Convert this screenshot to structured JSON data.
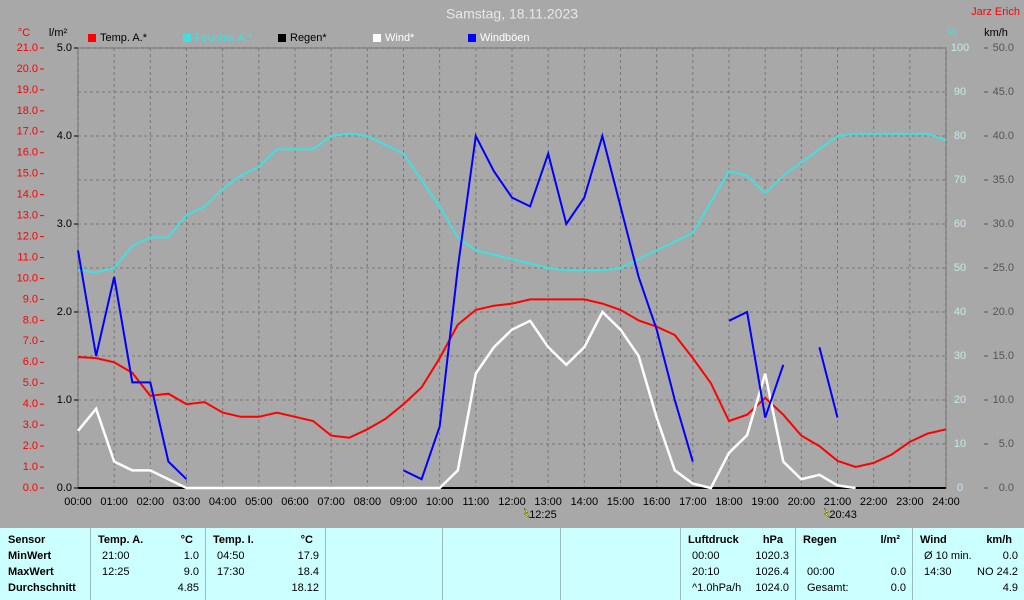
{
  "chart_data": {
    "type": "line",
    "title": "Samstag, 18.11.2023",
    "author": "Jarz Erich",
    "ylabel": "°C",
    "y2label": "l/m²",
    "y3label": "%",
    "y4label": "km/h",
    "x": [
      0,
      0.5,
      1,
      1.5,
      2,
      2.5,
      3,
      3.5,
      4,
      4.5,
      5,
      5.5,
      6,
      6.5,
      7,
      7.5,
      8,
      8.5,
      9,
      9.5,
      10,
      10.5,
      11,
      11.5,
      12,
      12.5,
      13,
      13.5,
      14,
      14.5,
      15,
      15.5,
      16,
      16.5,
      17,
      17.5,
      18,
      18.5,
      19,
      19.5,
      20,
      20.5,
      21,
      21.5,
      22,
      22.5,
      23,
      23.5,
      24
    ],
    "xlim": [
      0,
      24
    ],
    "xticks": [
      {
        "value": 0,
        "label": "00:00"
      },
      {
        "value": 1,
        "label": "01:00"
      },
      {
        "value": 2,
        "label": "02:00"
      },
      {
        "value": 3,
        "label": "03:00"
      },
      {
        "value": 4,
        "label": "04:00"
      },
      {
        "value": 5,
        "label": "05:00"
      },
      {
        "value": 6,
        "label": "06:00"
      },
      {
        "value": 7,
        "label": "07:00"
      },
      {
        "value": 8,
        "label": "08:00"
      },
      {
        "value": 9,
        "label": "09:00"
      },
      {
        "value": 10,
        "label": "10:00"
      },
      {
        "value": 11,
        "label": "11:00"
      },
      {
        "value": 12,
        "label": "12:00"
      },
      {
        "value": 13,
        "label": "13:00"
      },
      {
        "value": 14,
        "label": "14:00"
      },
      {
        "value": 15,
        "label": "15:00"
      },
      {
        "value": 16,
        "label": "16:00"
      },
      {
        "value": 17,
        "label": "17:00"
      },
      {
        "value": 18,
        "label": "18:00"
      },
      {
        "value": 19,
        "label": "19:00"
      },
      {
        "value": 20,
        "label": "20:00"
      },
      {
        "value": 21,
        "label": "21:00"
      },
      {
        "value": 22,
        "label": "22:00"
      },
      {
        "value": 23,
        "label": "23:00"
      },
      {
        "value": 24,
        "label": "24:00"
      }
    ],
    "ylim": [
      0,
      21
    ],
    "yticks": [
      {
        "value": 0,
        "label": "0.0"
      },
      {
        "value": 1,
        "label": "1.0"
      },
      {
        "value": 2,
        "label": "2.0"
      },
      {
        "value": 3,
        "label": "3.0"
      },
      {
        "value": 4,
        "label": "4.0"
      },
      {
        "value": 5,
        "label": "5.0"
      },
      {
        "value": 6,
        "label": "6.0"
      },
      {
        "value": 7,
        "label": "7.0"
      },
      {
        "value": 8,
        "label": "8.0"
      },
      {
        "value": 9,
        "label": "9.0"
      },
      {
        "value": 10,
        "label": "10.0"
      },
      {
        "value": 11,
        "label": "11.0"
      },
      {
        "value": 12,
        "label": "12.0"
      },
      {
        "value": 13,
        "label": "13.0"
      },
      {
        "value": 14,
        "label": "14.0"
      },
      {
        "value": 15,
        "label": "15.0"
      },
      {
        "value": 16,
        "label": "16.0"
      },
      {
        "value": 17,
        "label": "17.0"
      },
      {
        "value": 18,
        "label": "18.0"
      },
      {
        "value": 19,
        "label": "19.0"
      },
      {
        "value": 20,
        "label": "20.0"
      },
      {
        "value": 21,
        "label": "21.0"
      }
    ],
    "y2lim": [
      0,
      5
    ],
    "y2ticks": [
      {
        "value": 0,
        "label": "0.0"
      },
      {
        "value": 1,
        "label": "1.0"
      },
      {
        "value": 2,
        "label": "2.0"
      },
      {
        "value": 3,
        "label": "3.0"
      },
      {
        "value": 4,
        "label": "4.0"
      },
      {
        "value": 5,
        "label": "5.0"
      }
    ],
    "y3lim": [
      0,
      100
    ],
    "y3ticks": [
      0,
      10,
      20,
      30,
      40,
      50,
      60,
      70,
      80,
      90,
      100
    ],
    "y4lim": [
      0,
      50
    ],
    "y4ticks": [
      {
        "value": 0,
        "label": "0.0"
      },
      {
        "value": 5,
        "label": "5.0"
      },
      {
        "value": 10,
        "label": "10.0"
      },
      {
        "value": 15,
        "label": "15.0"
      },
      {
        "value": 20,
        "label": "20.0"
      },
      {
        "value": 25,
        "label": "25.0"
      },
      {
        "value": 30,
        "label": "30.0"
      },
      {
        "value": 35,
        "label": "35.0"
      },
      {
        "value": 40,
        "label": "40.0"
      },
      {
        "value": 45,
        "label": "45.0"
      },
      {
        "value": 50,
        "label": "50.0"
      }
    ],
    "grid": true,
    "series": [
      {
        "name": "Temp. A.*",
        "color": "#ff0000",
        "axis": "y",
        "values": [
          6.25,
          6.2,
          6.0,
          5.5,
          4.4,
          4.5,
          4.0,
          4.1,
          3.6,
          3.4,
          3.4,
          3.6,
          3.4,
          3.2,
          2.5,
          2.4,
          2.8,
          3.3,
          4.0,
          4.8,
          6.2,
          7.8,
          8.5,
          8.7,
          8.8,
          9.0,
          9.0,
          9.0,
          9.0,
          8.8,
          8.5,
          8.0,
          7.7,
          7.3,
          6.2,
          5.0,
          3.2,
          3.5,
          4.3,
          3.5,
          2.5,
          2.0,
          1.3,
          1.0,
          1.2,
          1.6,
          2.2,
          2.6,
          2.8
        ]
      },
      {
        "name": "Feuchte A.*",
        "color": "#40e0e0",
        "axis": "y3",
        "values": [
          49.5,
          49,
          50,
          55,
          57,
          57,
          62,
          64,
          68,
          71,
          73,
          77,
          77,
          77,
          80,
          80.5,
          80,
          78,
          76,
          70,
          64,
          57,
          54,
          53,
          52,
          51,
          50,
          49.5,
          49.5,
          49.5,
          50,
          52,
          54,
          56,
          58,
          65,
          72,
          71,
          67,
          71,
          74,
          77,
          80,
          80.5,
          80.5,
          80.5,
          80.5,
          80.5,
          79
        ]
      },
      {
        "name": "Regen*",
        "color": "#000000",
        "axis": "y2",
        "values": [
          0,
          0,
          0,
          0,
          0,
          0,
          0,
          0,
          0,
          0,
          0,
          0,
          0,
          0,
          0,
          0,
          0,
          0,
          0,
          0,
          0,
          0,
          0,
          0,
          0,
          0,
          0,
          0,
          0,
          0,
          0,
          0,
          0,
          0,
          0,
          0,
          0,
          0,
          0,
          0,
          0,
          0,
          0,
          0,
          0,
          0,
          0,
          0,
          0
        ]
      },
      {
        "name": "Wind*",
        "color": "#ffffff",
        "axis": "y4",
        "values": [
          6.5,
          9,
          3,
          2,
          2,
          1,
          0,
          0,
          0,
          0,
          0,
          0,
          0,
          0,
          0,
          0,
          0,
          0,
          0,
          0,
          0,
          2,
          13,
          16,
          18,
          19,
          16,
          14,
          16,
          20,
          18,
          15,
          8,
          2,
          0.5,
          0,
          4,
          6,
          13,
          3,
          1,
          1.5,
          0.3,
          0,
          null,
          null,
          null,
          null,
          null
        ]
      },
      {
        "name": "Windböen",
        "color": "#0000ff",
        "axis": "y4",
        "values": [
          27,
          15,
          24,
          12,
          12,
          3,
          1,
          null,
          null,
          null,
          null,
          null,
          null,
          null,
          null,
          null,
          null,
          null,
          2,
          1,
          7,
          25,
          40,
          36,
          33,
          32,
          38,
          30,
          33,
          40,
          32,
          24,
          18,
          10,
          3,
          null,
          19,
          20,
          8,
          14,
          null,
          16,
          8,
          null,
          null,
          null,
          null,
          null,
          null
        ]
      }
    ],
    "annotations": [
      {
        "x": 12.42,
        "label": "12:25"
      },
      {
        "x": 20.72,
        "label": "20:43"
      }
    ]
  },
  "table": {
    "columns": [
      {
        "header": [
          "Sensor"
        ],
        "rows": [
          [
            "MinWert"
          ],
          [
            "MaxWert"
          ],
          [
            "Durchschnitt"
          ]
        ]
      },
      {
        "header": [
          "Temp. A.",
          "°C"
        ],
        "rows": [
          [
            "21:00",
            "1.0"
          ],
          [
            "12:25",
            "9.0"
          ],
          [
            "4.85"
          ]
        ]
      },
      {
        "header": [
          "Temp. I.",
          "°C"
        ],
        "rows": [
          [
            "04:50",
            "17.9"
          ],
          [
            "17:30",
            "18.4"
          ],
          [
            "18.12"
          ]
        ]
      },
      {
        "header": [
          "Luftdruck",
          "hPa"
        ],
        "rows": [
          [
            "00:00",
            "1020.3"
          ],
          [
            "20:10",
            "1026.4"
          ],
          [
            "^1.0hPa/h",
            "1024.0"
          ]
        ]
      },
      {
        "header": [
          "Regen",
          "l/m²"
        ],
        "rows": [
          null,
          [
            "00:00",
            "0.0"
          ],
          [
            "Gesamt:",
            "0.0"
          ]
        ]
      },
      {
        "header": [
          "Wind",
          "km/h"
        ],
        "rows": [
          [
            "Ø 10 min.",
            "0.0"
          ],
          [
            "14:30",
            "NO 24.2"
          ],
          [
            "4.9"
          ]
        ]
      }
    ]
  }
}
